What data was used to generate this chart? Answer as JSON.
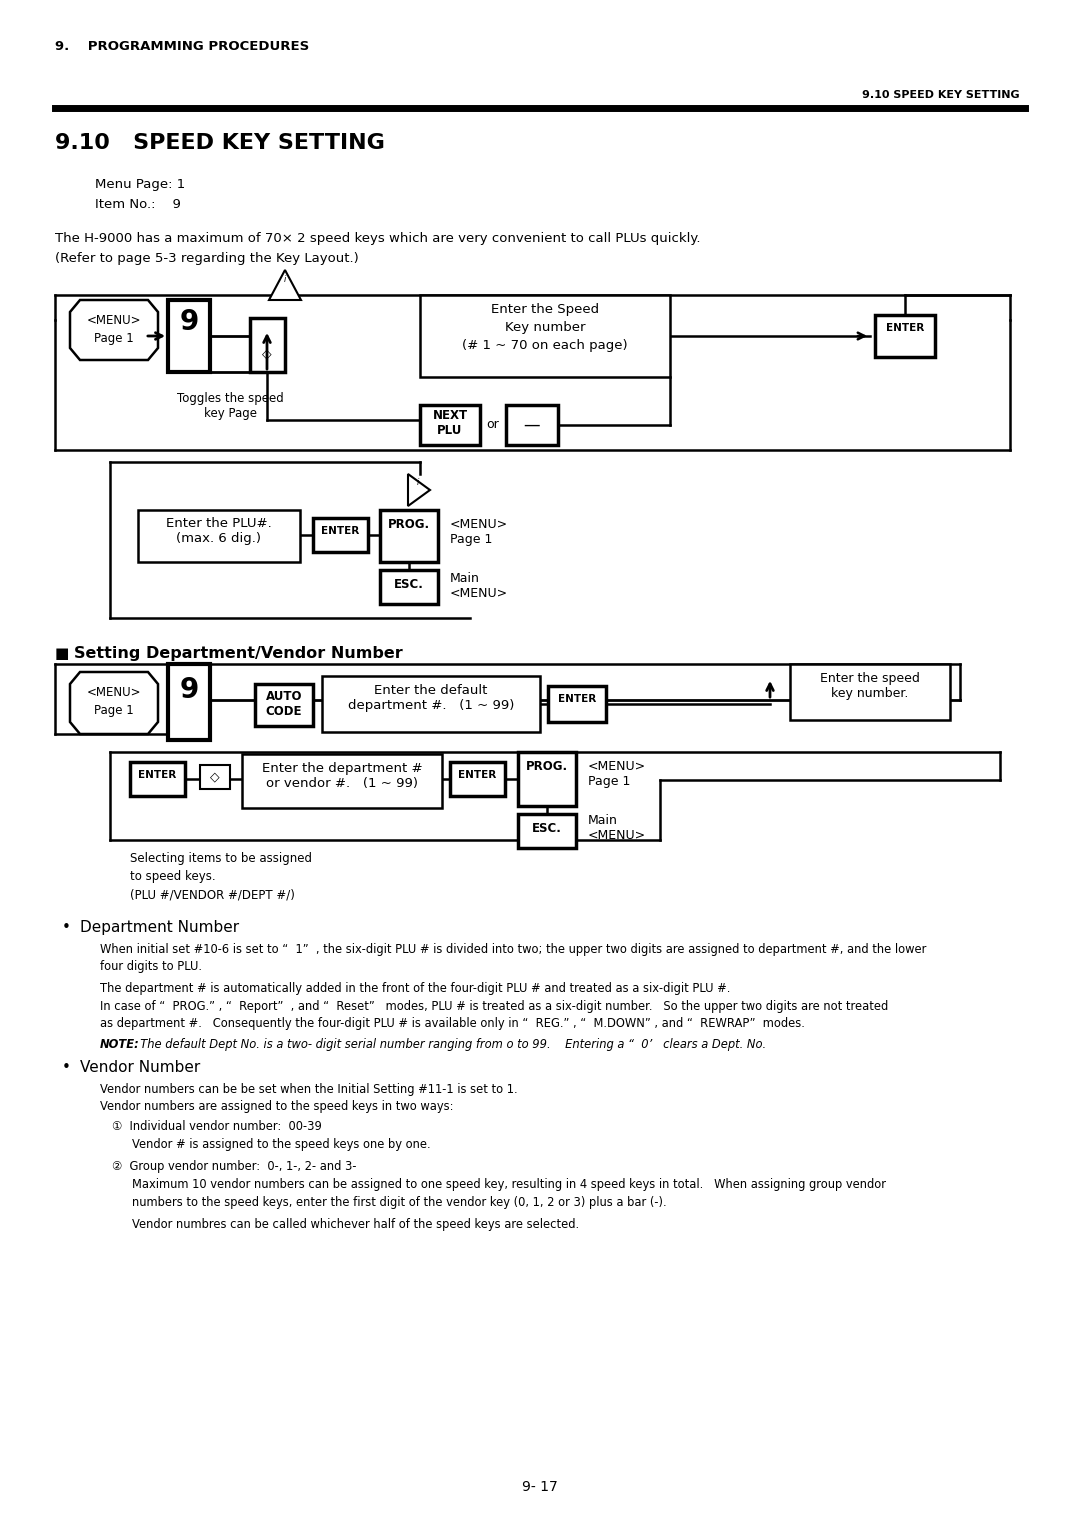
{
  "bg_color": "#ffffff",
  "page_header_left": "9.    PROGRAMMING PROCEDURES",
  "page_header_right": "9.10 SPEED KEY SETTING",
  "section_title": "9.10   SPEED KEY SETTING",
  "menu_page": "Menu Page: 1",
  "item_no": "Item No.:    9",
  "intro_line1": "The H-9000 has a maximum of 70× 2 speed keys which are very convenient to call PLUs quickly.",
  "intro_line2": "(Refer to page 5-3 regarding the Key Layout.)",
  "subsection_title": "■  Setting Department/Vendor Number",
  "dept_bullet_title": "Department Number",
  "dept_text1": "When initial set #10-6 is set to “  1”  , the six-digit PLU # is divided into two; the upper two digits are assigned to department #, and the lower",
  "dept_text1b": "four digits to PLU.",
  "dept_text2": "The department # is automatically added in the front of the four-digit PLU # and treated as a six-digit PLU #.",
  "dept_text3": "In case of “  PROG.” , “  Report”  , and “  Reset”   modes, PLU # is treated as a six-digit number.   So the upper two digits are not treated",
  "dept_text3b": "as department #.   Consequently the four-digit PLU # is available only in “  REG.” , “  M.DOWN” , and “  REWRAP”  modes.",
  "dept_text4_bold": "NOTE:",
  "dept_text4": "  The default Dept No. is a two- digit serial number ranging from o to 99.    Entering a “  0’   clears a Dept. No.",
  "vendor_bullet_title": "Vendor Number",
  "vendor_text1": "Vendor numbers can be be set when the Initial Setting #11-1 is set to 1.",
  "vendor_text2": "Vendor numbers are assigned to the speed keys in two ways:",
  "vendor_item1": "①  Individual vendor number:  00-39",
  "vendor_item1b": "Vendor # is assigned to the speed keys one by one.",
  "vendor_item2": "②  Group vendor number:  0-, 1-, 2- and 3-",
  "vendor_item2b": "Maximum 10 vendor numbers can be assigned to one speed key, resulting in 4 speed keys in total.   When assigning group vendor",
  "vendor_item2c": "numbers to the speed keys, enter the first digit of the vendor key (0, 1, 2 or 3) plus a bar (-).",
  "vendor_item2d": "Vendor numbres can be called whichever half of the speed keys are selected.",
  "page_number": "9- 17"
}
